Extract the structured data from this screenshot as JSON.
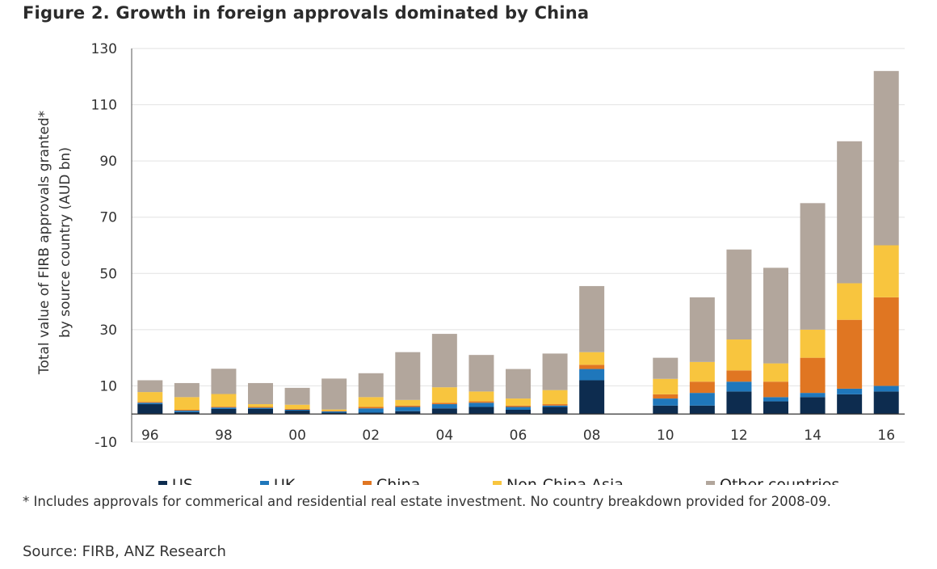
{
  "title": "Figure 2. Growth in foreign approvals dominated by China",
  "footnote": "* Includes approvals for commerical and residential real estate investment. No country breakdown provided for 2008-09.",
  "source": "Source: FIRB, ANZ Research",
  "colors": {
    "US": "#0d2c4f",
    "UK": "#1f77bb",
    "China": "#e07622",
    "Non-China Asia": "#f8c53e",
    "Other countries": "#b2a69c"
  },
  "chart_data": {
    "type": "bar",
    "stacked": true,
    "title": "Figure 2. Growth in foreign approvals dominated by China",
    "ylabel": "Total value of FIRB approvals granted* by source country (AUD bn)",
    "xlabel": "",
    "ylim": [
      -10,
      130
    ],
    "yticks": [
      -10,
      10,
      30,
      50,
      70,
      90,
      110,
      130
    ],
    "grid": true,
    "legend_position": "bottom",
    "categories": [
      "96",
      "97",
      "98",
      "99",
      "00",
      "01",
      "02",
      "03",
      "04",
      "05",
      "06",
      "07",
      "08",
      "09",
      "10",
      "11",
      "12",
      "13",
      "14",
      "15",
      "16"
    ],
    "xtick_labels": [
      "96",
      "98",
      "00",
      "02",
      "04",
      "06",
      "08",
      "10",
      "12",
      "14",
      "16"
    ],
    "series": [
      {
        "name": "US",
        "values": [
          3.5,
          0.7,
          1.8,
          1.8,
          1.2,
          0.5,
          0.5,
          1.0,
          2.0,
          2.5,
          1.5,
          2.5,
          12.0,
          null,
          3.0,
          3.0,
          8.0,
          4.5,
          6.0,
          7.0,
          8.0
        ]
      },
      {
        "name": "UK",
        "values": [
          0.5,
          0.5,
          0.5,
          0.4,
          0.3,
          0.4,
          1.5,
          1.5,
          1.5,
          1.5,
          1.0,
          0.5,
          4.0,
          null,
          2.5,
          4.5,
          3.5,
          1.5,
          1.5,
          2.0,
          2.0
        ]
      },
      {
        "name": "China",
        "values": [
          0.3,
          0.3,
          0.3,
          0.3,
          0.3,
          0.2,
          0.5,
          0.5,
          0.5,
          0.5,
          0.5,
          0.5,
          1.5,
          null,
          1.5,
          4.0,
          4.0,
          5.5,
          12.5,
          24.5,
          31.5
        ]
      },
      {
        "name": "Non-China Asia",
        "values": [
          3.5,
          4.5,
          4.5,
          1.0,
          1.5,
          0.5,
          3.5,
          2.0,
          5.5,
          3.5,
          2.5,
          5.0,
          4.5,
          null,
          5.5,
          7.0,
          11.0,
          6.5,
          10.0,
          13.0,
          18.5
        ]
      },
      {
        "name": "Other countries",
        "values": [
          4.2,
          5.0,
          9.0,
          7.5,
          6.0,
          11.0,
          8.5,
          17.0,
          19.0,
          13.0,
          10.5,
          13.0,
          23.5,
          null,
          7.5,
          23.0,
          32.0,
          34.0,
          45.0,
          50.5,
          62.0
        ]
      }
    ]
  }
}
